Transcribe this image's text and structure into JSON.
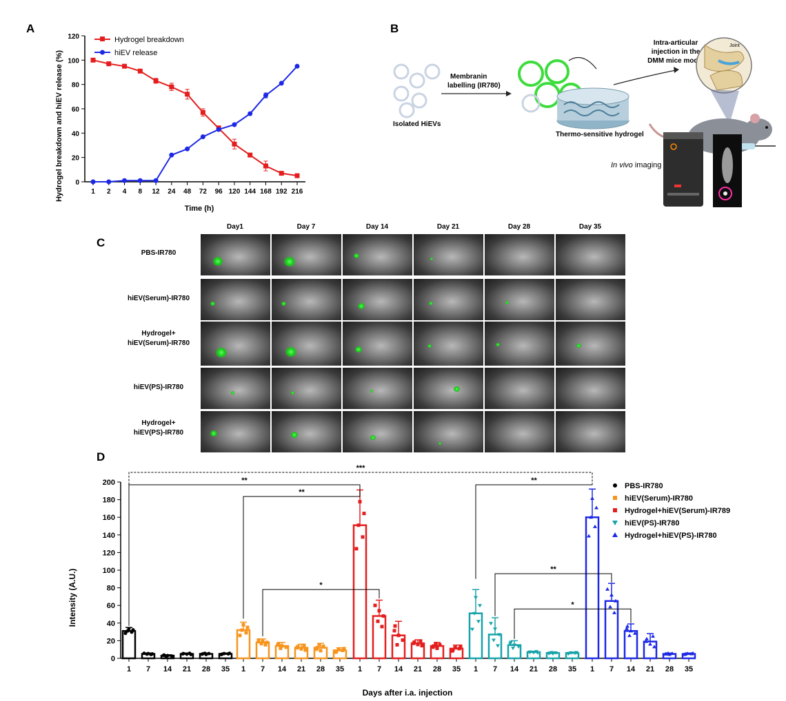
{
  "panelA": {
    "letter": "A",
    "ylabel": "Hydrogel breakdown and hiEV release (%)",
    "xlabel": "Time (h)",
    "legend": [
      "Hydrogel breakdown",
      "hiEV release"
    ],
    "colors": {
      "breakdown": "#e41e1e",
      "release": "#1c28e6"
    },
    "chart_data": {
      "type": "line",
      "x": [
        1,
        2,
        4,
        8,
        12,
        24,
        48,
        72,
        96,
        120,
        144,
        168,
        192,
        216
      ],
      "ylim": [
        0,
        120
      ],
      "yticks": [
        0,
        20,
        40,
        60,
        80,
        100,
        120
      ],
      "series": [
        {
          "name": "Hydrogel breakdown",
          "values": [
            100,
            97,
            95,
            91,
            83,
            78,
            72,
            57,
            44,
            31,
            22,
            13,
            7,
            5
          ],
          "errors": [
            0,
            1,
            1,
            1.5,
            2,
            3,
            4,
            3,
            2,
            4,
            1.5,
            4,
            0,
            0
          ]
        },
        {
          "name": "hiEV release",
          "values": [
            0,
            0,
            1,
            1,
            1,
            22,
            27,
            37,
            43,
            47,
            56,
            71,
            81,
            95
          ],
          "errors": [
            0,
            0,
            0,
            0,
            0,
            0,
            0,
            0,
            0,
            0,
            0,
            2,
            0,
            0
          ]
        }
      ]
    }
  },
  "panelB": {
    "letter": "B",
    "isolated": "Isolated HiEVs",
    "labelling_line1": "Membranin",
    "labelling_line2": "labelling (IR780)",
    "hydrogel": "Thermo-sensitive hydrogel",
    "injection_line1": "Intra-articular",
    "injection_line2": "injection in the",
    "injection_line3": "DMM mice model",
    "joint": "Joint",
    "imaging_italic": "In vivo",
    "imaging_rest": " imaging"
  },
  "panelC": {
    "letter": "C",
    "days": [
      "Day1",
      "Day 7",
      "Day 14",
      "Day 21",
      "Day 28",
      "Day 35"
    ],
    "groups": [
      {
        "line1": "PBS-IR780",
        "line2": ""
      },
      {
        "line1": "hiEV(Serum)-IR780",
        "line2": ""
      },
      {
        "line1": "Hydrogel+",
        "line2": "hiEV(Serum)-IR780"
      },
      {
        "line1": "hiEV(PS)-IR780",
        "line2": ""
      },
      {
        "line1": "Hydrogel+",
        "line2": "hiEV(PS)-IR780"
      }
    ]
  },
  "panelD": {
    "letter": "D",
    "ylabel": "Intensity (A.U.)",
    "xlabel": "Days after i.a. injection",
    "legend": [
      "PBS-IR780",
      "hiEV(Serum)-IR780",
      "Hydrogel+hiEV(Serum)-IR789",
      "hiEV(PS)-IR780",
      "Hydrogel+hiEV(PS)-IR780"
    ],
    "colors": [
      "#000000",
      "#f7941d",
      "#e41e1e",
      "#16a3a9",
      "#1c28e6"
    ],
    "significance": [
      "**",
      "**",
      "*",
      "***",
      "**",
      "**",
      "*"
    ],
    "chart_data": {
      "type": "bar",
      "categories": [
        "1",
        "7",
        "14",
        "21",
        "28",
        "35"
      ],
      "ylim": [
        0,
        200
      ],
      "yticks": [
        0,
        20,
        40,
        60,
        80,
        100,
        120,
        140,
        160,
        180,
        200
      ],
      "series": [
        {
          "name": "PBS-IR780",
          "values": [
            31,
            5,
            3,
            5,
            5,
            5
          ],
          "errors": [
            4,
            1,
            1,
            1,
            1,
            1
          ]
        },
        {
          "name": "hiEV(Serum)-IR780",
          "values": [
            32,
            18,
            14,
            12,
            12,
            9
          ],
          "errors": [
            9,
            4,
            4,
            4,
            5,
            3
          ]
        },
        {
          "name": "Hydrogel+hiEV(Serum)-IR789",
          "values": [
            151,
            48,
            26,
            17,
            14,
            11
          ],
          "errors": [
            40,
            18,
            16,
            4,
            4,
            4
          ]
        },
        {
          "name": "hiEV(PS)-IR780",
          "values": [
            51,
            27,
            15,
            7,
            6,
            6
          ],
          "errors": [
            27,
            19,
            5,
            1,
            1,
            1
          ]
        },
        {
          "name": "Hydrogel+hiEV(PS)-IR780",
          "values": [
            160,
            65,
            31,
            19,
            5,
            5
          ],
          "errors": [
            32,
            20,
            8,
            9,
            1,
            1
          ]
        }
      ]
    }
  }
}
